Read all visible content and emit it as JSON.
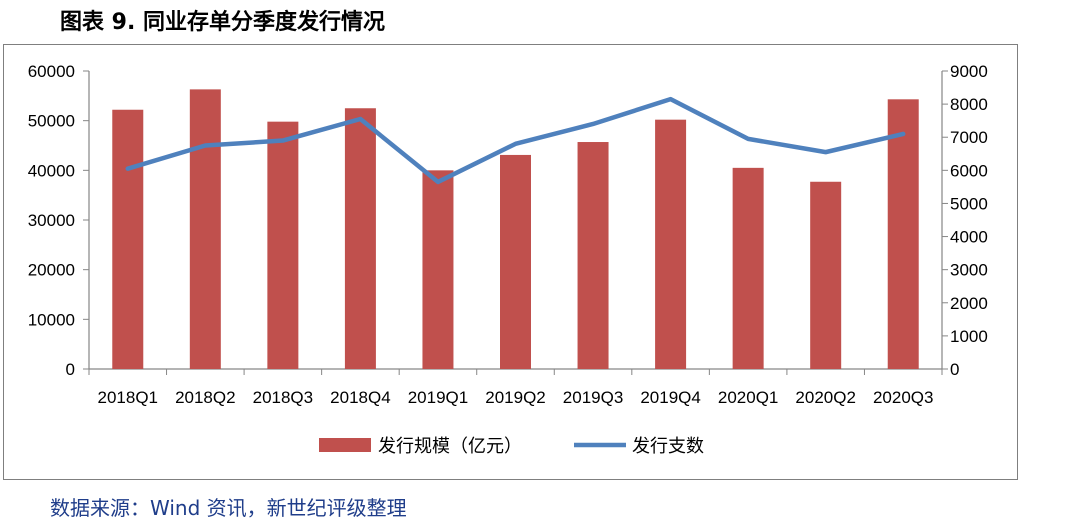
{
  "figure_title": "图表 9. 同业存单分季度发行情况",
  "source_text": "数据来源：Wind 资讯，新世纪评级整理",
  "chart_data": {
    "type": "bar",
    "categories": [
      "2018Q1",
      "2018Q2",
      "2018Q3",
      "2018Q4",
      "2019Q1",
      "2019Q2",
      "2019Q3",
      "2019Q4",
      "2020Q1",
      "2020Q2",
      "2020Q3"
    ],
    "series": [
      {
        "name": "发行规模（亿元）",
        "type": "bar",
        "axis": "left",
        "values": [
          52200,
          56300,
          49800,
          52500,
          40000,
          43100,
          45700,
          50200,
          40500,
          37700,
          54300
        ]
      },
      {
        "name": "发行支数",
        "type": "line",
        "axis": "right",
        "values": [
          6050,
          6750,
          6900,
          7550,
          5650,
          6800,
          7400,
          8150,
          6950,
          6550,
          7100
        ]
      }
    ],
    "ylim_left": [
      0,
      60000
    ],
    "ylim_right": [
      0,
      9000
    ],
    "yticks_left": [
      "0",
      "10000",
      "20000",
      "30000",
      "40000",
      "50000",
      "60000"
    ],
    "yticks_right": [
      "0",
      "1000",
      "2000",
      "3000",
      "4000",
      "5000",
      "6000",
      "7000",
      "8000",
      "9000"
    ],
    "grid": false,
    "legend_position": "bottom",
    "colors": {
      "bar": "#c0504d",
      "line": "#4f81bd"
    }
  }
}
